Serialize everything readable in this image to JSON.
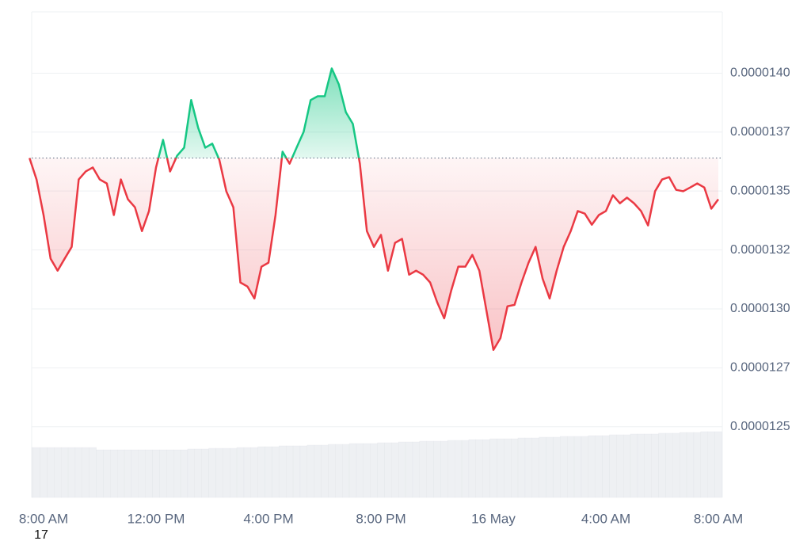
{
  "chart_data": {
    "type": "line",
    "categories": [
      null,
      null,
      "8:00 AM",
      null,
      null,
      null,
      null,
      null,
      null,
      null,
      null,
      null,
      null,
      null,
      null,
      null,
      null,
      null,
      "12:00 PM",
      null,
      null,
      null,
      null,
      null,
      null,
      null,
      null,
      null,
      null,
      null,
      null,
      null,
      null,
      null,
      "4:00 PM",
      null,
      null,
      null,
      null,
      null,
      null,
      null,
      null,
      null,
      null,
      null,
      null,
      null,
      null,
      null,
      "8:00 PM",
      null,
      null,
      null,
      null,
      null,
      null,
      null,
      null,
      null,
      null,
      null,
      null,
      null,
      null,
      null,
      "16 May",
      null,
      null,
      null,
      null,
      null,
      null,
      null,
      null,
      null,
      null,
      null,
      null,
      null,
      null,
      null,
      "4:00 AM",
      null,
      null,
      null,
      null,
      null,
      null,
      null,
      null,
      null,
      null,
      null,
      null,
      null,
      null,
      null,
      "8:00 AM"
    ],
    "x_sublabel": "17",
    "values": [
      1.364e-05,
      1.3549e-05,
      1.3398e-05,
      1.3213e-05,
      1.3162e-05,
      1.3213e-05,
      1.3263e-05,
      1.3549e-05,
      1.3583e-05,
      1.36e-05,
      1.3549e-05,
      1.3532e-05,
      1.3398e-05,
      1.3549e-05,
      1.3465e-05,
      1.3431e-05,
      1.333e-05,
      1.3415e-05,
      1.36e-05,
      1.3717e-05,
      1.3583e-05,
      1.365e-05,
      1.3684e-05,
      1.3886e-05,
      1.3768e-05,
      1.3684e-05,
      1.3701e-05,
      1.3633e-05,
      1.3499e-05,
      1.3431e-05,
      1.3112e-05,
      1.3095e-05,
      1.3044e-05,
      1.3179e-05,
      1.3196e-05,
      1.3398e-05,
      1.3667e-05,
      1.3616e-05,
      1.3684e-05,
      1.3751e-05,
      1.3886e-05,
      1.3902e-05,
      1.3902e-05,
      1.402e-05,
      1.3953e-05,
      1.3835e-05,
      1.3785e-05,
      1.3616e-05,
      1.333e-05,
      1.3263e-05,
      1.3314e-05,
      1.3162e-05,
      1.328e-05,
      1.3297e-05,
      1.3145e-05,
      1.3162e-05,
      1.3145e-05,
      1.3112e-05,
      1.3028e-05,
      1.296e-05,
      1.3078e-05,
      1.3179e-05,
      1.3179e-05,
      1.3229e-05,
      1.3162e-05,
      1.2994e-05,
      1.2826e-05,
      1.2876e-05,
      1.3011e-05,
      1.3017e-05,
      1.3112e-05,
      1.3196e-05,
      1.3263e-05,
      1.3128e-05,
      1.3044e-05,
      1.3162e-05,
      1.3263e-05,
      1.333e-05,
      1.3415e-05,
      1.3404e-05,
      1.3357e-05,
      1.3398e-05,
      1.3415e-05,
      1.3482e-05,
      1.3448e-05,
      1.3472e-05,
      1.3448e-05,
      1.3415e-05,
      1.3354e-05,
      1.3499e-05,
      1.3549e-05,
      1.3559e-05,
      1.3505e-05,
      1.3499e-05,
      1.3515e-05,
      1.3532e-05,
      1.3515e-05,
      1.3425e-05,
      1.3465e-05
    ],
    "baseline": 1.364e-05,
    "up_color": "#16c784",
    "down_color": "#ea3943",
    "ylim": [
      1.22e-05,
      1.426e-05
    ],
    "yticks": [
      {
        "value": 1.4e-05,
        "label": "0.0000140"
      },
      {
        "value": 1.375e-05,
        "label": "0.0000137"
      },
      {
        "value": 1.35e-05,
        "label": "0.0000135"
      },
      {
        "value": 1.325e-05,
        "label": "0.0000132"
      },
      {
        "value": 1.3e-05,
        "label": "0.0000130"
      },
      {
        "value": 1.275e-05,
        "label": "0.0000127"
      },
      {
        "value": 1.25e-05,
        "label": "0.0000125"
      }
    ],
    "grid": true,
    "volume": {
      "color": "#eef0f3",
      "ylim": [
        0,
        100
      ],
      "values": [
        63,
        63,
        63,
        63,
        63,
        63,
        63,
        63,
        63,
        63,
        60,
        60,
        60,
        60,
        60,
        60,
        60,
        60,
        60,
        60,
        60,
        60,
        60,
        61,
        61,
        61,
        62,
        62,
        62,
        62,
        63,
        63,
        63,
        64,
        64,
        64,
        65,
        65,
        65,
        65,
        66,
        66,
        66,
        67,
        67,
        67,
        68,
        68,
        68,
        68,
        69,
        69,
        69,
        70,
        70,
        70,
        71,
        71,
        71,
        71,
        72,
        72,
        72,
        73,
        73,
        73,
        74,
        74,
        74,
        74,
        75,
        75,
        75,
        76,
        76,
        76,
        77,
        77,
        77,
        77,
        78,
        78,
        78,
        79,
        79,
        79,
        80,
        80,
        80,
        80,
        81,
        81,
        81,
        82,
        82,
        82,
        83,
        83,
        83
      ]
    }
  }
}
